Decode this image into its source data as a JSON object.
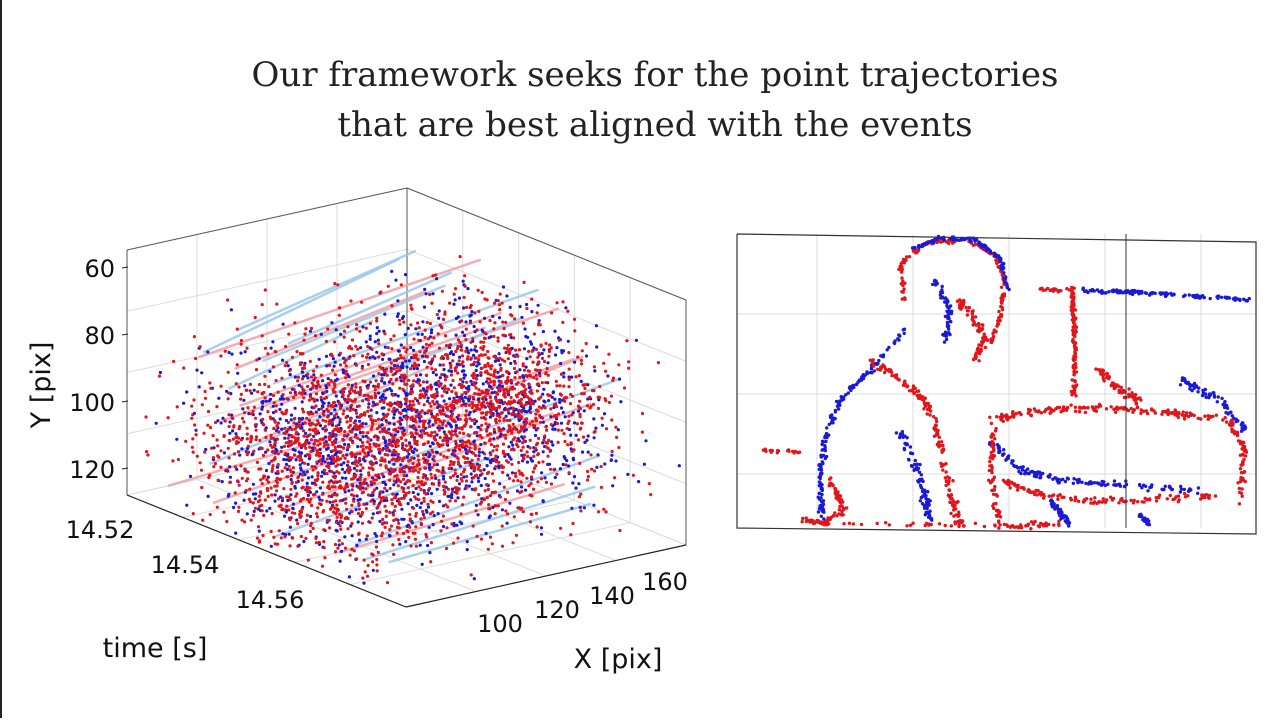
{
  "title": {
    "line1": "Our framework seeks for the point trajectories",
    "line2": "that are best aligned with the events"
  },
  "colors": {
    "positive_events": "#e0161b",
    "negative_events": "#1a1ad6",
    "trajectory_light_blue": "#9cc8ec",
    "trajectory_light_red": "#f0a0a8",
    "grid": "#dcdcdc",
    "box": "#333333"
  },
  "chart_data": [
    {
      "type": "scatter",
      "subtype": "3d",
      "xlabel": "X [pix]",
      "ylabel": "Y [pix]",
      "zlabel": "time [s]",
      "x_ticks": [
        "100",
        "120",
        "140",
        "160"
      ],
      "y_ticks": [
        "60",
        "80",
        "100",
        "120"
      ],
      "t_ticks": [
        "14.52",
        "14.54",
        "14.56"
      ],
      "xlim": [
        80,
        170
      ],
      "ylim": [
        50,
        130
      ],
      "tlim": [
        14.51,
        14.575
      ],
      "grid": true,
      "series": [
        {
          "polarity": "positive",
          "color": "#e0161b",
          "approx_count": 3200
        },
        {
          "polarity": "negative",
          "color": "#1a1ad6",
          "approx_count": 1700
        }
      ],
      "trajectories": {
        "style": "lines",
        "colors": [
          "#9cc8ec",
          "#f0a0a8"
        ]
      }
    },
    {
      "type": "scatter",
      "subtype": "2d-projection",
      "grid": true,
      "series": [
        {
          "polarity": "positive",
          "color": "#e0161b"
        },
        {
          "polarity": "negative",
          "color": "#1a1ad6"
        }
      ]
    }
  ]
}
